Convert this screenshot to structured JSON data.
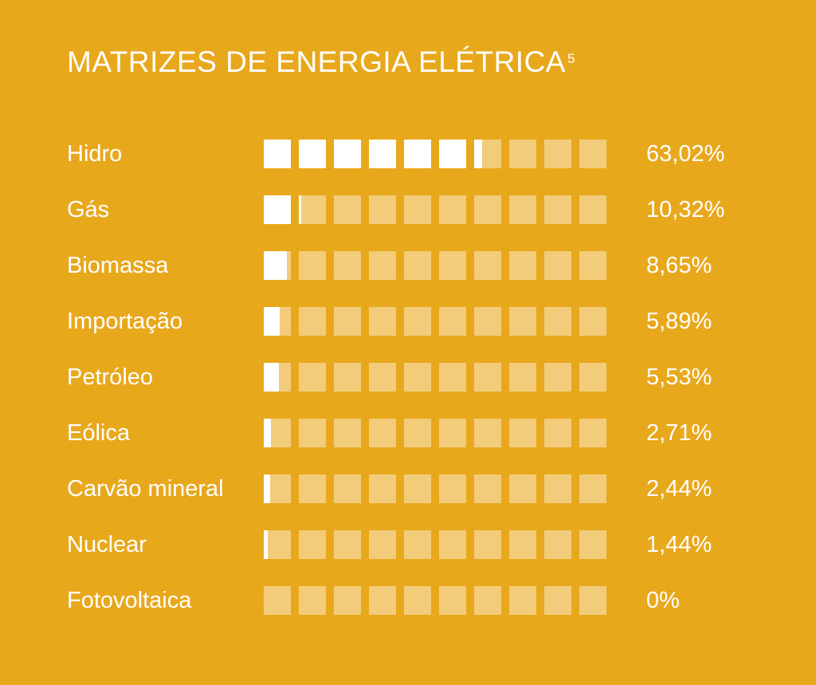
{
  "chart_data": {
    "type": "bar",
    "title": "MATRIZES DE ENERGIA ELÉTRICA",
    "title_footnote": "5",
    "categories": [
      "Hidro",
      "Gás",
      "Biomassa",
      "Importação",
      "Petróleo",
      "Eólica",
      "Carvão mineral",
      "Nuclear",
      "Fotovoltaica"
    ],
    "values": [
      63.02,
      10.32,
      8.65,
      5.89,
      5.53,
      2.71,
      2.44,
      1.44,
      0
    ],
    "value_labels": [
      "63,02%",
      "10,32%",
      "8,65%",
      "5,89%",
      "5,53%",
      "2,71%",
      "2,44%",
      "1,44%",
      "0%"
    ],
    "ylim": [
      0,
      100
    ],
    "cells_per_bar": 10,
    "background_color": "#E8A81C",
    "fill_color": "#FFFFFF",
    "empty_cell_color": "#F2C66F",
    "grid": false,
    "legend": "none"
  }
}
